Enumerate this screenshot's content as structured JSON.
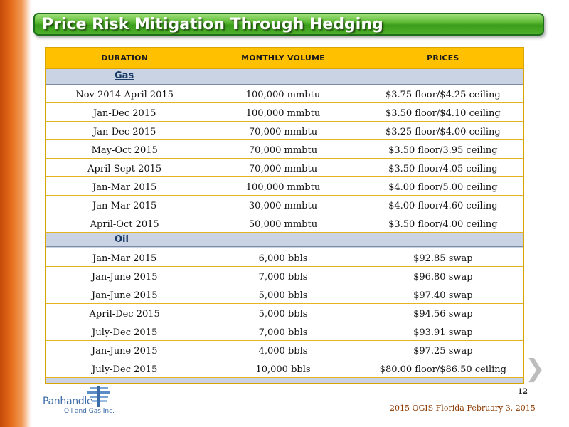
{
  "title": "Price Risk Mitigation Through Hedging",
  "table": {
    "headers": [
      "Duration",
      "Monthly Volume",
      "Prices"
    ],
    "sections": [
      {
        "label": "Gas",
        "rows": [
          [
            "Nov 2014-April 2015",
            "100,000 mmbtu",
            "$3.75 floor/$4.25 ceiling"
          ],
          [
            "Jan-Dec 2015",
            "100,000 mmbtu",
            "$3.50 floor/$4.10 ceiling"
          ],
          [
            "Jan-Dec 2015",
            "70,000 mmbtu",
            "$3.25 floor/$4.00 ceiling"
          ],
          [
            "May-Oct 2015",
            "70,000 mmbtu",
            "$3.50 floor/3.95 ceiling"
          ],
          [
            "April-Sept 2015",
            "70,000 mmbtu",
            "$3.50 floor/4.05 ceiling"
          ],
          [
            "Jan-Mar 2015",
            "100,000 mmbtu",
            "$4.00 floor/5.00 ceiling"
          ],
          [
            "Jan-Mar 2015",
            "30,000 mmbtu",
            "$4.00 floor/4.60 ceiling"
          ],
          [
            "April-Oct 2015",
            "50,000 mmbtu",
            "$3.50 floor/4.00 ceiling"
          ]
        ]
      },
      {
        "label": "Oil",
        "rows": [
          [
            "Jan-Mar 2015",
            "6,000 bbls",
            "$92.85 swap"
          ],
          [
            "Jan-June 2015",
            "7,000 bbls",
            "$96.80 swap"
          ],
          [
            "Jan-June 2015",
            "5,000 bbls",
            "$97.40 swap"
          ],
          [
            "April-Dec 2015",
            "5,000 bbls",
            "$94.56 swap"
          ],
          [
            "July-Dec 2015",
            "7,000 bbls",
            "$93.91 swap"
          ],
          [
            "Jan-June 2015",
            "4,000 bbls",
            "$97.25 swap"
          ],
          [
            "July-Dec 2015",
            "10,000 bbls",
            "$80.00 floor/$86.50 ceiling"
          ]
        ]
      }
    ]
  },
  "page_number": "12",
  "footer": "2015 OGIS Florida February 3, 2015",
  "logo": {
    "name": "Panhandle",
    "subtitle": "Oil and Gas Inc."
  },
  "icons": {
    "next": "chevron-right-icon",
    "logo": "panhandle-logo-icon"
  },
  "colors": {
    "title_green": "#3a9c1b",
    "header_gold": "#ffc000",
    "section_blue": "#c9d3e3",
    "accent_orange": "#e46c1a"
  }
}
